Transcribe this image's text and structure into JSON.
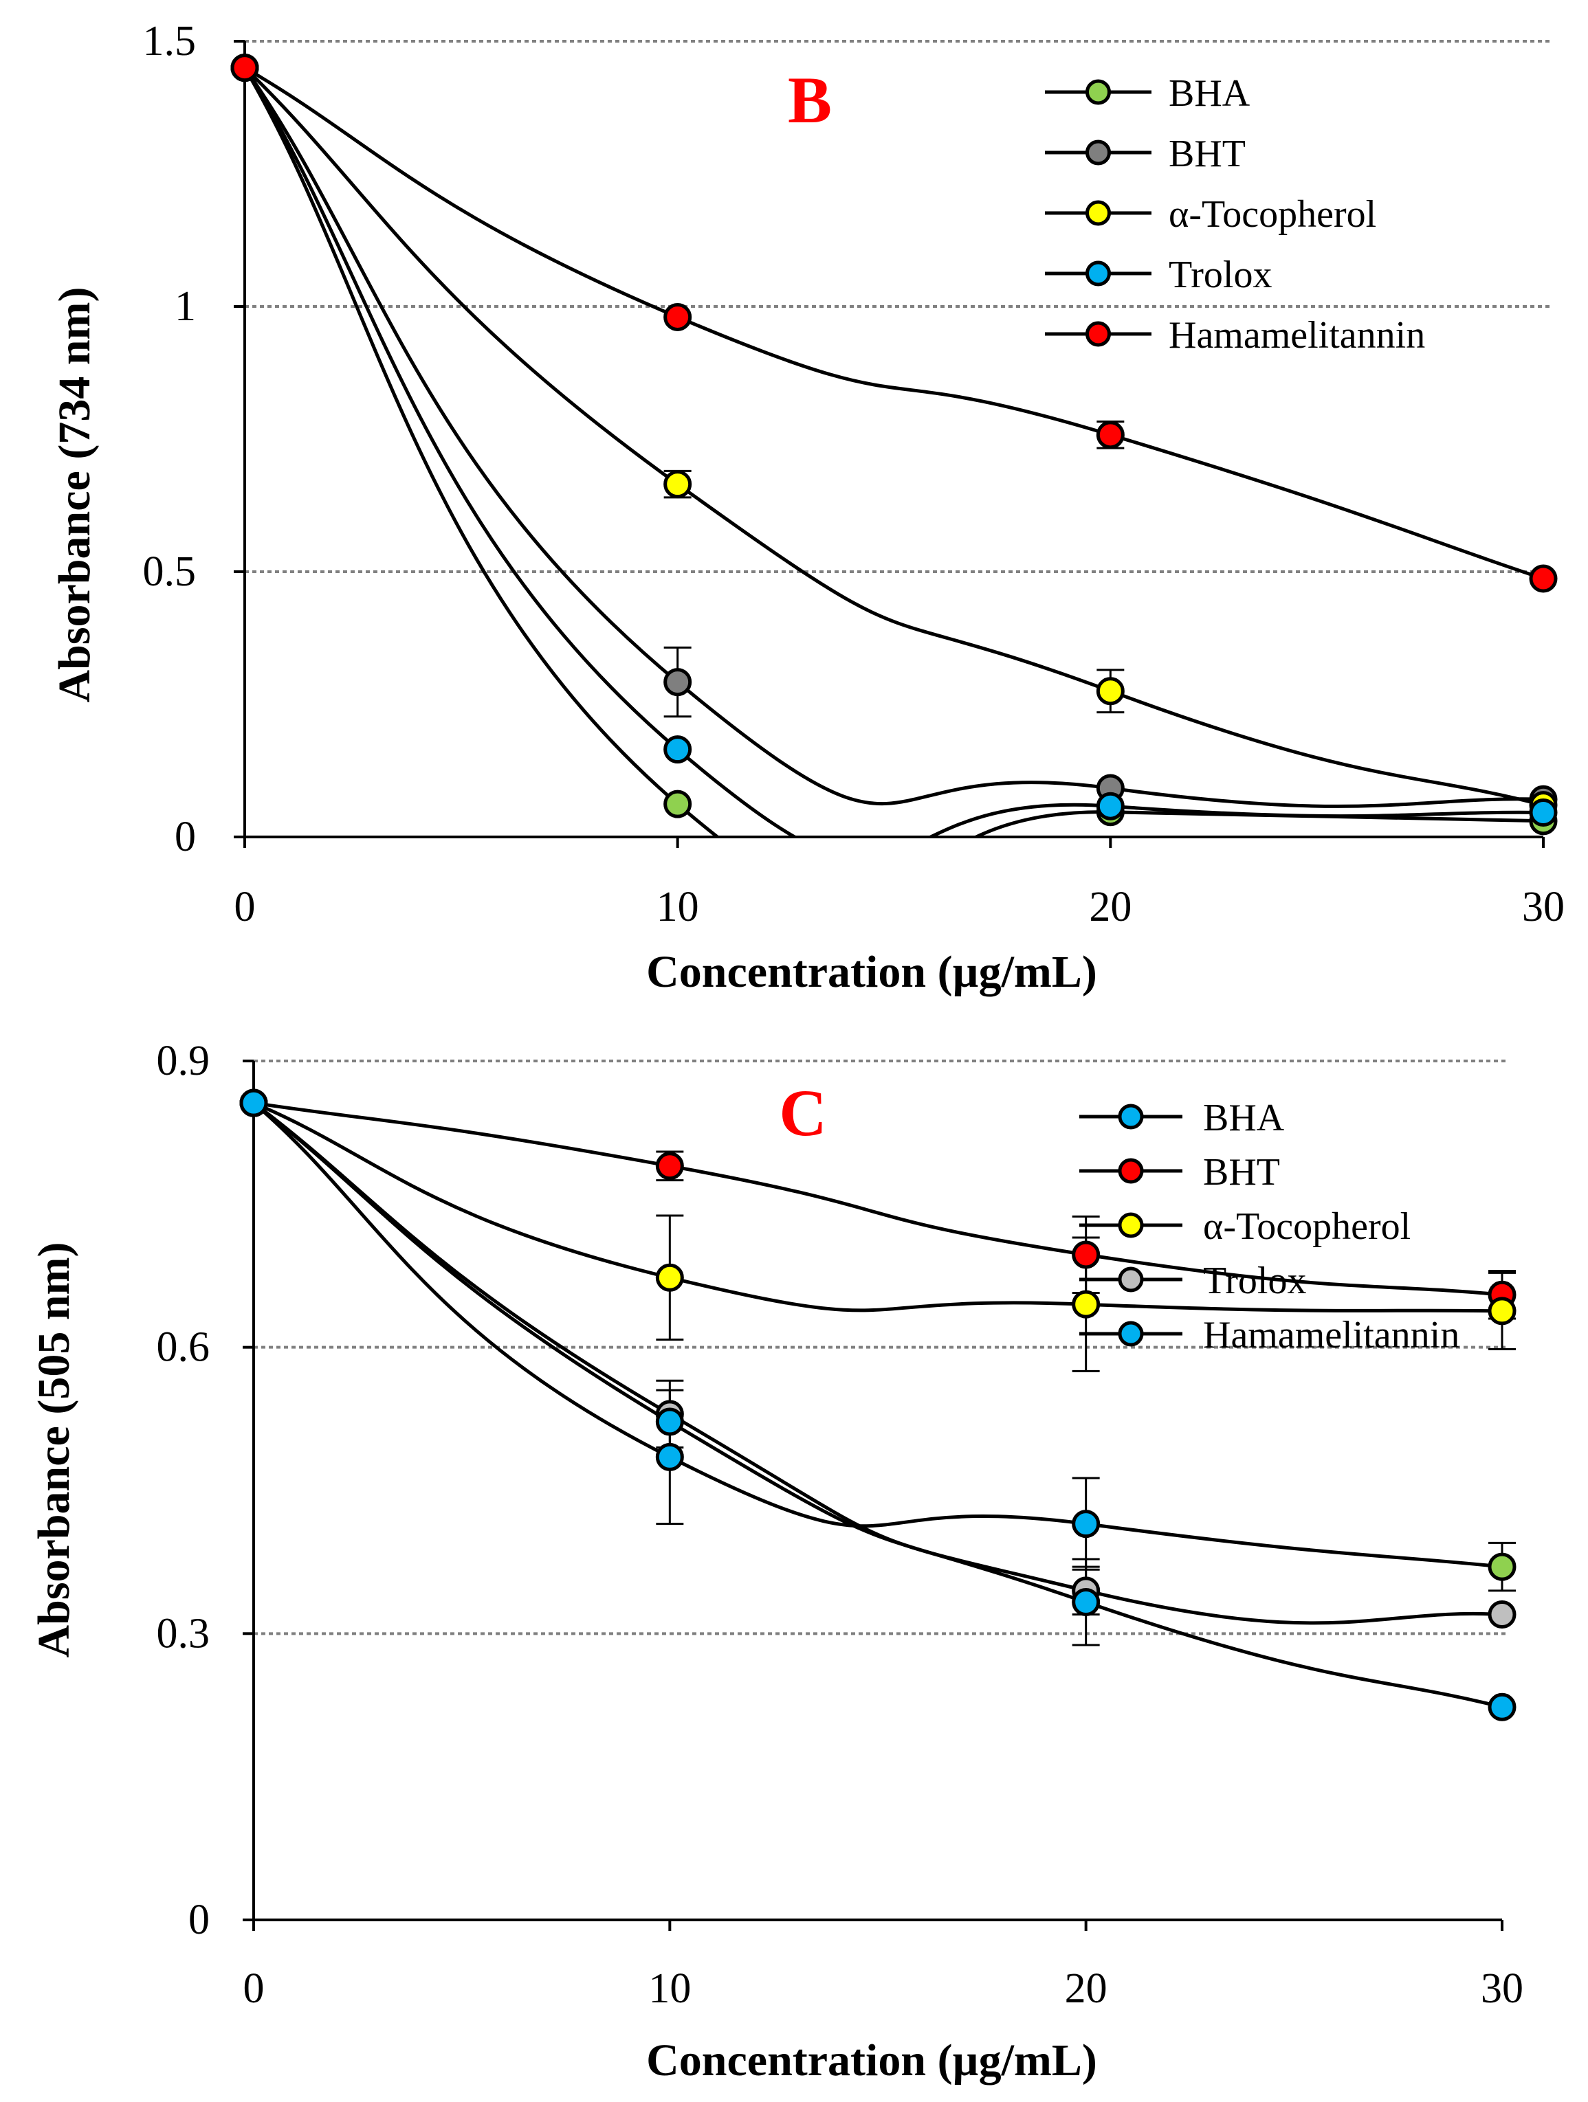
{
  "chart_data": [
    {
      "type": "line",
      "panel_label": "B",
      "x": [
        0,
        10,
        20,
        30
      ],
      "xticks": [
        "0",
        "10",
        "20",
        "30"
      ],
      "xlim": [
        0,
        30
      ],
      "xlabel": "Concentration (µg/mL)",
      "ylabel": "Absorbance (734 nm)",
      "ylim": [
        0,
        1.5
      ],
      "yticks": [
        "0",
        "0.5",
        "1",
        "1.5"
      ],
      "ytick_values": [
        0,
        0.5,
        1,
        1.5
      ],
      "grid": "horizontal dotted",
      "legend_position": "top-right",
      "colors": {
        "BHA": "#8fd14f",
        "BHT": "#7f7f7f",
        "alpha_tocopherol": "#ffff00",
        "Trolox": "#00b0f0",
        "Hamamelitannin": "#ff0000"
      },
      "series": [
        {
          "name": "BHA",
          "color": "#8fd14f",
          "values": [
            1.45,
            0.062,
            0.047,
            0.03
          ],
          "errors": [
            0,
            0,
            0,
            0
          ]
        },
        {
          "name": "BHT",
          "color": "#7f7f7f",
          "values": [
            1.45,
            0.292,
            0.092,
            0.071
          ],
          "errors": [
            0,
            0.065,
            0,
            0
          ]
        },
        {
          "name": "α-Tocopherol",
          "color": "#ffff00",
          "values": [
            1.45,
            0.665,
            0.275,
            0.06
          ],
          "errors": [
            0,
            0.025,
            0.04,
            0
          ]
        },
        {
          "name": "Trolox",
          "color": "#00b0f0",
          "values": [
            1.45,
            0.165,
            0.058,
            0.046
          ],
          "errors": [
            0,
            0,
            0,
            0
          ]
        },
        {
          "name": "Hamamelitannin",
          "color": "#ff0000",
          "values": [
            1.45,
            0.98,
            0.758,
            0.487
          ],
          "errors": [
            0,
            0,
            0.025,
            0
          ]
        }
      ]
    },
    {
      "type": "line",
      "panel_label": "C",
      "x": [
        0,
        10,
        20,
        30
      ],
      "xticks": [
        "0",
        "10",
        "20",
        "30"
      ],
      "xlim": [
        0,
        30
      ],
      "xlabel": "Concentration (µg/mL)",
      "ylabel": "Absorbance (505 nm)",
      "ylim": [
        0,
        0.9
      ],
      "yticks": [
        "0",
        "0.3",
        "0.6",
        "0.9"
      ],
      "ytick_values": [
        0,
        0.3,
        0.6,
        0.9
      ],
      "grid": "horizontal dotted",
      "legend_position": "top-right",
      "series": [
        {
          "name": "BHA",
          "color": "#00b0f0",
          "values": [
            0.856,
            0.485,
            0.415,
            0.37
          ],
          "errors": [
            0,
            0.07,
            0.048,
            0.025
          ],
          "marker_colors": [
            "#00b0f0",
            "#00b0f0",
            "#00b0f0",
            "#8fd14f"
          ]
        },
        {
          "name": "BHT",
          "color": "#ff0000",
          "values": [
            0.856,
            0.79,
            0.697,
            0.655
          ],
          "errors": [
            0,
            0.015,
            0.04,
            0.025
          ]
        },
        {
          "name": "α-Tocopherol",
          "color": "#ffff00",
          "values": [
            0.856,
            0.673,
            0.645,
            0.638
          ],
          "errors": [
            0,
            0.065,
            0.07,
            0.04
          ]
        },
        {
          "name": "Trolox",
          "color": "#bfbfbf",
          "values": [
            0.856,
            0.53,
            0.345,
            0.32
          ],
          "errors": [
            0,
            0.035,
            0.025,
            0
          ]
        },
        {
          "name": "Hamamelitannin",
          "color": "#00b0f0",
          "values": [
            0.856,
            0.522,
            0.333,
            0.223
          ],
          "errors": [
            0,
            0,
            0.045,
            0
          ]
        }
      ]
    }
  ]
}
